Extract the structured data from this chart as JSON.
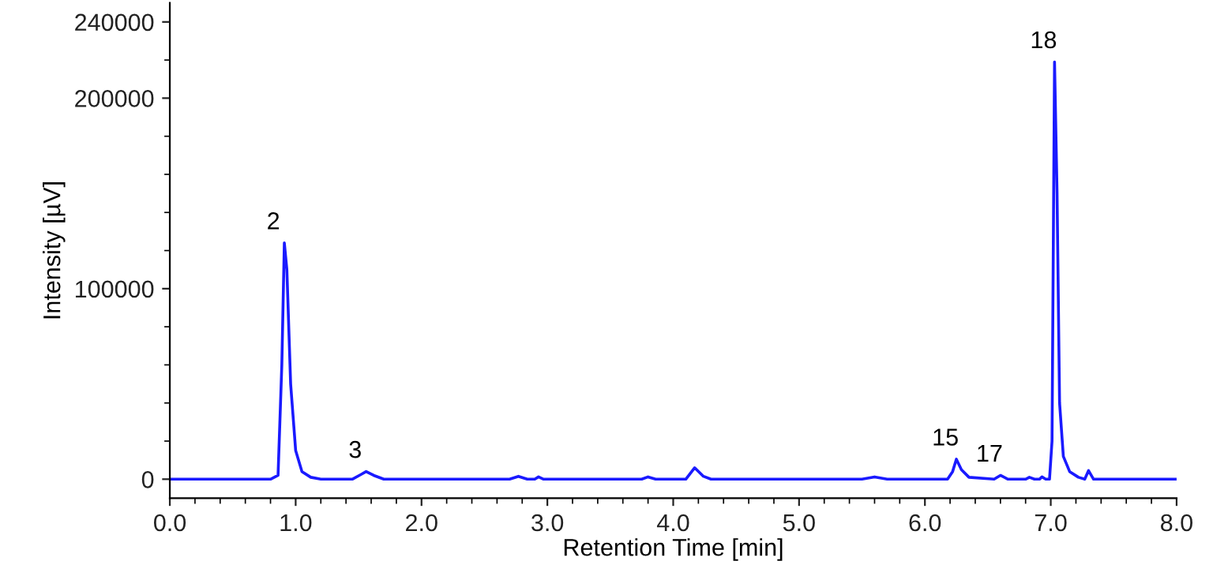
{
  "chart_data": {
    "type": "line",
    "xlabel": "Retention Time [min]",
    "ylabel": "Intensity [µV]",
    "xlim": [
      0,
      8
    ],
    "xticks": [
      {
        "value": 0,
        "label": "0.0"
      },
      {
        "value": 1,
        "label": "1.0"
      },
      {
        "value": 2,
        "label": "2.0"
      },
      {
        "value": 3,
        "label": "3.0"
      },
      {
        "value": 4,
        "label": "4.0"
      },
      {
        "value": 5,
        "label": "5.0"
      },
      {
        "value": 6,
        "label": "6.0"
      },
      {
        "value": 7,
        "label": "7.0"
      },
      {
        "value": 8,
        "label": "8.0"
      }
    ],
    "ylim": [
      -10000,
      250000
    ],
    "yticks": [
      0,
      100000,
      200000,
      240000
    ],
    "grid": false,
    "legend": false,
    "marker": "none",
    "line_style": "solid",
    "series": [
      {
        "color": "#1a1aff",
        "x": [
          0,
          0.5,
          0.8,
          0.86,
          0.89,
          0.91,
          0.93,
          0.96,
          1.0,
          1.05,
          1.12,
          1.2,
          1.45,
          1.52,
          1.56,
          1.62,
          1.7,
          2.7,
          2.77,
          2.84,
          2.9,
          2.93,
          2.97,
          3.75,
          3.8,
          3.86,
          4.1,
          4.17,
          4.24,
          4.3,
          5.5,
          5.6,
          5.7,
          6.18,
          6.22,
          6.25,
          6.29,
          6.35,
          6.55,
          6.6,
          6.66,
          6.8,
          6.83,
          6.87,
          6.91,
          6.93,
          6.96,
          6.99,
          7.01,
          7.03,
          7.05,
          7.07,
          7.1,
          7.15,
          7.22,
          7.27,
          7.3,
          7.34,
          7.5,
          8.0
        ],
        "values": [
          0,
          0,
          0,
          2000,
          60000,
          124000,
          110000,
          50000,
          15000,
          4000,
          1000,
          0,
          0,
          2500,
          4000,
          2000,
          0,
          0,
          1500,
          0,
          0,
          1200,
          0,
          0,
          1200,
          0,
          0,
          6000,
          1500,
          0,
          0,
          1200,
          0,
          0,
          4000,
          10500,
          5000,
          1000,
          0,
          2000,
          0,
          0,
          1000,
          0,
          0,
          1200,
          0,
          0,
          20000,
          219000,
          150000,
          40000,
          12000,
          4000,
          1000,
          0,
          4500,
          0,
          0,
          0
        ]
      }
    ],
    "annotations": [
      {
        "text": "2",
        "x": 0.91,
        "y": 124000
      },
      {
        "text": "3",
        "x": 1.56,
        "y": 4000
      },
      {
        "text": "15",
        "x": 6.25,
        "y": 10500
      },
      {
        "text": "17",
        "x": 6.6,
        "y": 2000
      },
      {
        "text": "18",
        "x": 7.03,
        "y": 219000
      }
    ]
  }
}
